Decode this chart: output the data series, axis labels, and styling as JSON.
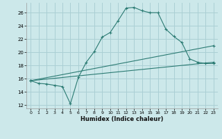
{
  "xlabel": "Humidex (Indice chaleur)",
  "bg_color": "#cce8ea",
  "grid_color": "#aacfd4",
  "line_color": "#2a7a72",
  "xlim": [
    -0.5,
    23.5
  ],
  "ylim": [
    11.5,
    27.5
  ],
  "xticks": [
    0,
    1,
    2,
    3,
    4,
    5,
    6,
    7,
    8,
    9,
    10,
    11,
    12,
    13,
    14,
    15,
    16,
    17,
    18,
    19,
    20,
    21,
    22,
    23
  ],
  "yticks": [
    12,
    14,
    16,
    18,
    20,
    22,
    24,
    26
  ],
  "series1_x": [
    0,
    1,
    2,
    3,
    4,
    5,
    6,
    7,
    8,
    9,
    10,
    11,
    12,
    13,
    14,
    15,
    16,
    17,
    18,
    19,
    20,
    21,
    22,
    23
  ],
  "series1_y": [
    15.7,
    15.3,
    15.2,
    15.0,
    14.8,
    12.2,
    16.2,
    18.5,
    20.1,
    22.3,
    23.0,
    24.8,
    26.7,
    26.8,
    26.3,
    26.0,
    26.0,
    23.5,
    22.4,
    21.5,
    19.0,
    18.5,
    18.3,
    18.3
  ],
  "series2_x": [
    0,
    23
  ],
  "series2_y": [
    15.7,
    18.5
  ],
  "series3_x": [
    0,
    23
  ],
  "series3_y": [
    15.7,
    21.0
  ]
}
